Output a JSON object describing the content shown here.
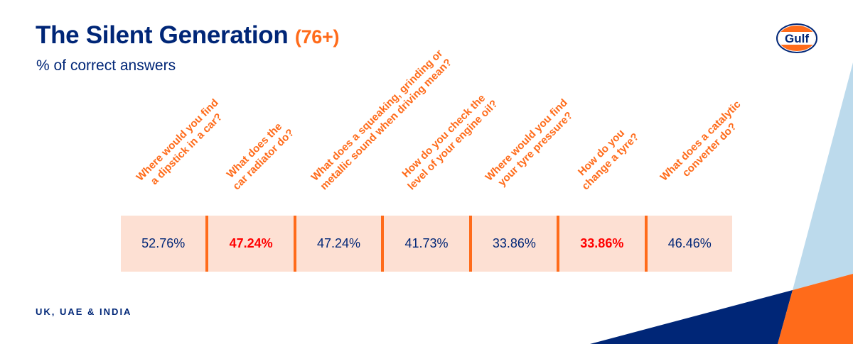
{
  "header": {
    "title": "The Silent Generation",
    "age_group": "(76+)",
    "subtitle": "% of correct answers"
  },
  "logo": {
    "text": "Gulf"
  },
  "colors": {
    "navy": "#002677",
    "orange": "#ff6b1a",
    "highlight": "#ff0000",
    "cell_bg": "#fde0d3",
    "light_blue": "#bcdaec"
  },
  "chart_data": {
    "type": "table",
    "questions": [
      [
        "Where would you find",
        "a dipstick in a car?"
      ],
      [
        "What does the",
        "car radiator do?"
      ],
      [
        "What does a squeaking, grinding or",
        "metallic sound when driving mean?"
      ],
      [
        "How do you check the",
        "level of your engine oil?"
      ],
      [
        "Where would you find",
        "your tyre pressure?"
      ],
      [
        "How do you",
        "change a tyre?"
      ],
      [
        "What does a catalytic",
        "converter do?"
      ]
    ],
    "values": [
      "52.76%",
      "47.24%",
      "47.24%",
      "41.73%",
      "33.86%",
      "33.86%",
      "46.46%"
    ],
    "highlighted": [
      false,
      true,
      false,
      false,
      false,
      true,
      false
    ]
  },
  "footer": {
    "region": "UK, UAE & INDIA"
  }
}
